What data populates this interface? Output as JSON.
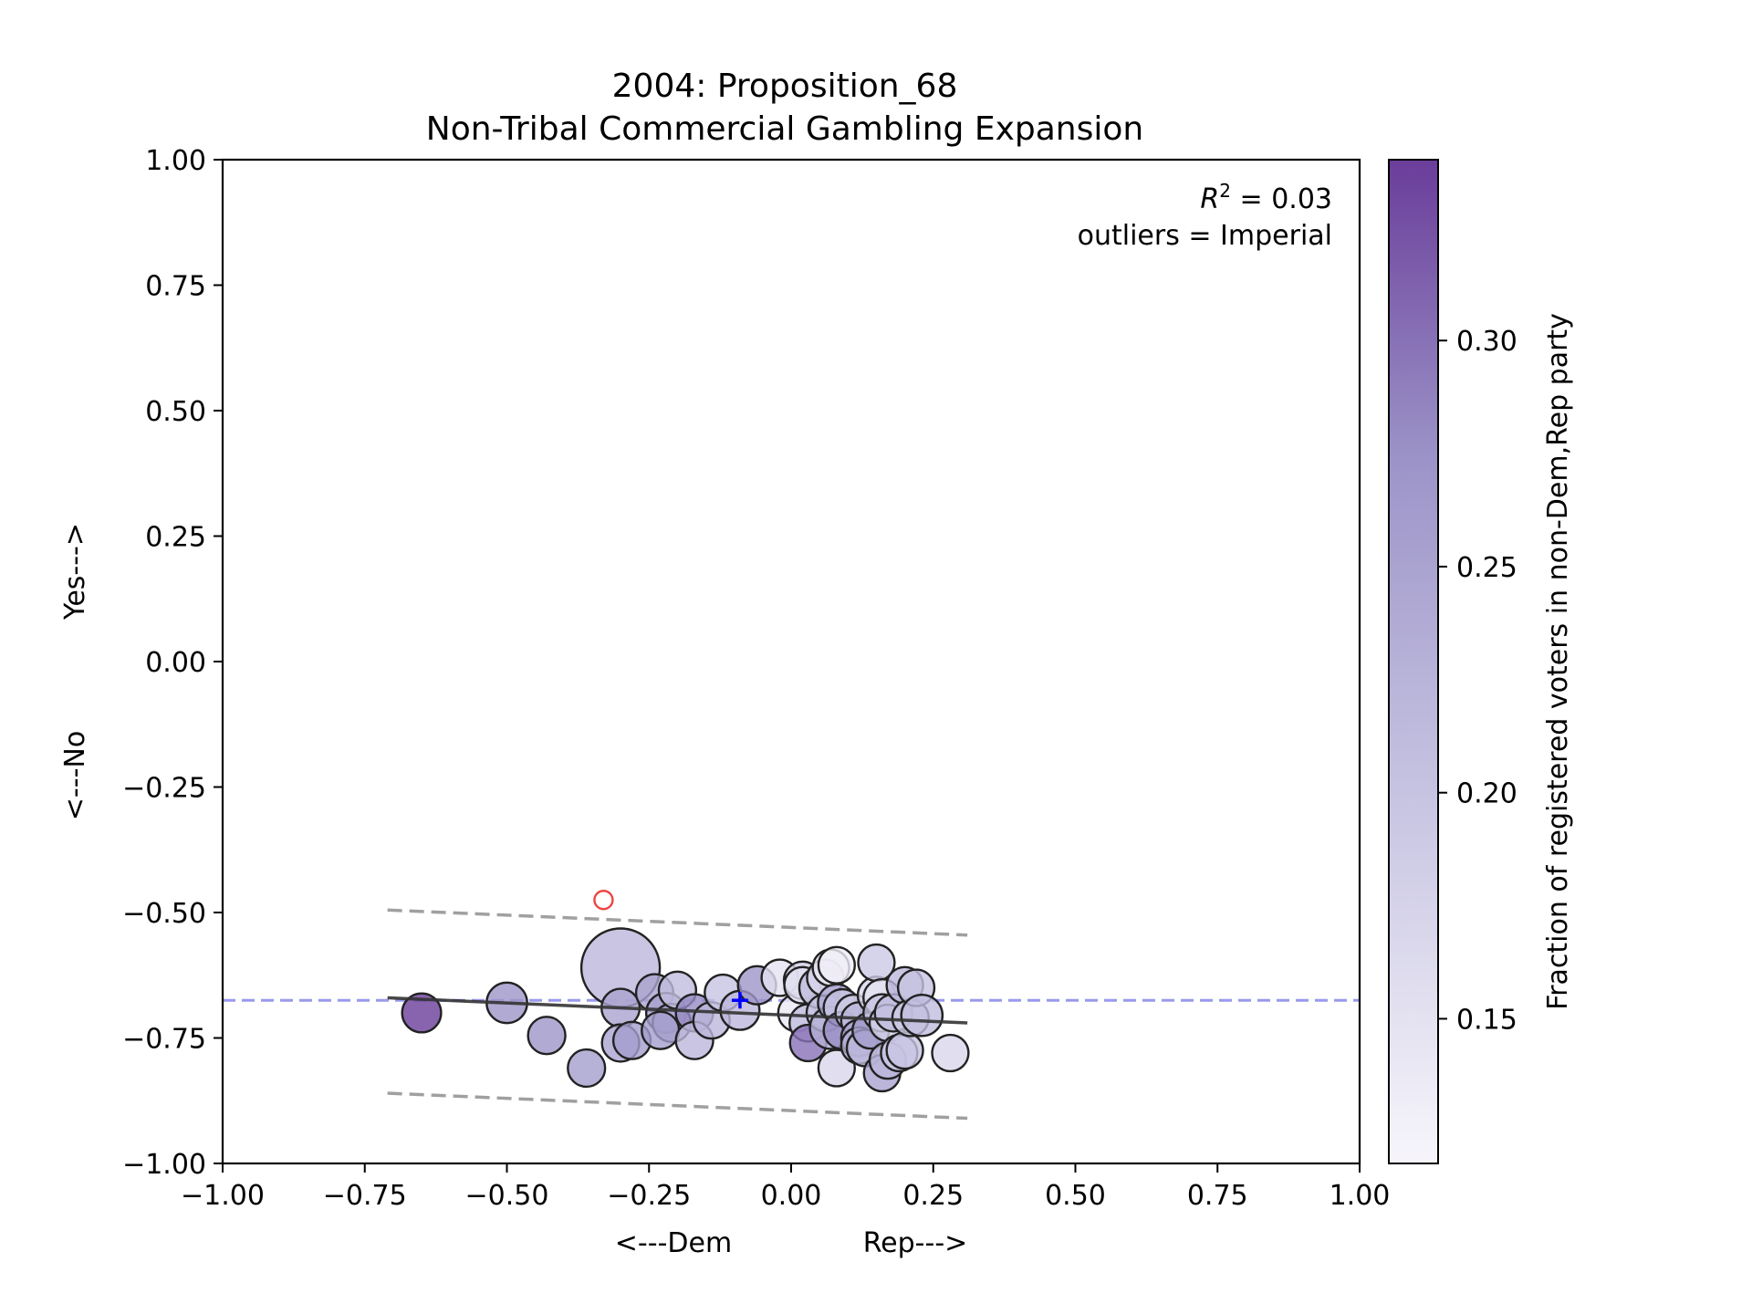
{
  "chart_data": {
    "type": "scatter",
    "title_line1": "2004: Proposition_68",
    "title_line2": "Non-Tribal Commercial Gambling Expansion",
    "xlabel_left": "<---Dem",
    "xlabel_right": "Rep--->",
    "ylabel_left": "<---No",
    "ylabel_right": "Yes--->",
    "xlim": [
      -1.0,
      1.0
    ],
    "ylim": [
      -1.0,
      1.0
    ],
    "xticks": [
      "−1.00",
      "−0.75",
      "−0.50",
      "−0.25",
      "0.00",
      "0.25",
      "0.50",
      "0.75",
      "1.00"
    ],
    "xtick_values": [
      -1.0,
      -0.75,
      -0.5,
      -0.25,
      0.0,
      0.25,
      0.5,
      0.75,
      1.0
    ],
    "yticks": [
      "1.00",
      "0.75",
      "0.50",
      "0.25",
      "0.00",
      "−0.25",
      "−0.50",
      "−0.75",
      "−1.00"
    ],
    "ytick_values": [
      1.0,
      0.75,
      0.5,
      0.25,
      0.0,
      -0.25,
      -0.5,
      -0.75,
      -1.0
    ],
    "annotation_r2": "R² = 0.03",
    "annotation_outliers": "outliers = Imperial",
    "colorbar": {
      "label": "Fraction of registered voters in non-Dem,Rep party",
      "range": [
        0.118,
        0.34
      ],
      "ticks": [
        "0.15",
        "0.20",
        "0.25",
        "0.30"
      ],
      "tick_values": [
        0.15,
        0.2,
        0.25,
        0.3
      ],
      "color_low": "#f7f5fb",
      "color_high": "#6a3d9a"
    },
    "mean_line": {
      "y": -0.675,
      "color": "#9999ee"
    },
    "regression_line": {
      "x": [
        -0.71,
        0.31
      ],
      "y": [
        -0.67,
        -0.72
      ],
      "color": "#333333"
    },
    "bounds": [
      {
        "x": [
          -0.71,
          0.31
        ],
        "y": [
          -0.495,
          -0.545
        ],
        "color": "#a0a0a0"
      },
      {
        "x": [
          -0.71,
          0.31
        ],
        "y": [
          -0.86,
          -0.91
        ],
        "color": "#a0a0a0"
      }
    ],
    "center_marker": {
      "x": -0.09,
      "y": -0.675,
      "color": "#0000ff"
    },
    "outlier": {
      "x": -0.33,
      "y": -0.475,
      "color": "#ee4444"
    },
    "points": [
      {
        "x": -0.3,
        "y": -0.61,
        "s": 1.0,
        "c": 0.22
      },
      {
        "x": -0.65,
        "y": -0.7,
        "s": 0.14,
        "c": 0.34
      },
      {
        "x": -0.5,
        "y": -0.68,
        "s": 0.16,
        "c": 0.27
      },
      {
        "x": -0.43,
        "y": -0.745,
        "s": 0.12,
        "c": 0.27
      },
      {
        "x": -0.36,
        "y": -0.81,
        "s": 0.12,
        "c": 0.26
      },
      {
        "x": -0.3,
        "y": -0.69,
        "s": 0.13,
        "c": 0.25
      },
      {
        "x": -0.3,
        "y": -0.76,
        "s": 0.12,
        "c": 0.25
      },
      {
        "x": -0.28,
        "y": -0.755,
        "s": 0.12,
        "c": 0.26
      },
      {
        "x": -0.24,
        "y": -0.66,
        "s": 0.12,
        "c": 0.25
      },
      {
        "x": -0.22,
        "y": -0.7,
        "s": 0.15,
        "c": 0.25
      },
      {
        "x": -0.21,
        "y": -0.72,
        "s": 0.13,
        "c": 0.24
      },
      {
        "x": -0.23,
        "y": -0.735,
        "s": 0.12,
        "c": 0.26
      },
      {
        "x": -0.2,
        "y": -0.655,
        "s": 0.12,
        "c": 0.21
      },
      {
        "x": -0.17,
        "y": -0.7,
        "s": 0.12,
        "c": 0.28
      },
      {
        "x": -0.17,
        "y": -0.755,
        "s": 0.12,
        "c": 0.22
      },
      {
        "x": -0.14,
        "y": -0.715,
        "s": 0.11,
        "c": 0.22
      },
      {
        "x": -0.12,
        "y": -0.66,
        "s": 0.11,
        "c": 0.2
      },
      {
        "x": -0.09,
        "y": -0.695,
        "s": 0.14,
        "c": 0.22
      },
      {
        "x": -0.06,
        "y": -0.645,
        "s": 0.13,
        "c": 0.27
      },
      {
        "x": -0.02,
        "y": -0.63,
        "s": 0.11,
        "c": 0.15
      },
      {
        "x": 0.01,
        "y": -0.7,
        "s": 0.12,
        "c": 0.14
      },
      {
        "x": 0.02,
        "y": -0.635,
        "s": 0.12,
        "c": 0.18
      },
      {
        "x": 0.02,
        "y": -0.645,
        "s": 0.11,
        "c": 0.15
      },
      {
        "x": 0.03,
        "y": -0.72,
        "s": 0.12,
        "c": 0.21
      },
      {
        "x": 0.03,
        "y": -0.76,
        "s": 0.11,
        "c": 0.3
      },
      {
        "x": 0.05,
        "y": -0.65,
        "s": 0.16,
        "c": 0.21
      },
      {
        "x": 0.06,
        "y": -0.7,
        "s": 0.12,
        "c": 0.2
      },
      {
        "x": 0.07,
        "y": -0.73,
        "s": 0.18,
        "c": 0.23
      },
      {
        "x": 0.06,
        "y": -0.63,
        "s": 0.11,
        "c": 0.17
      },
      {
        "x": 0.07,
        "y": -0.61,
        "s": 0.11,
        "c": 0.14
      },
      {
        "x": 0.08,
        "y": -0.605,
        "s": 0.11,
        "c": 0.13
      },
      {
        "x": 0.08,
        "y": -0.68,
        "s": 0.12,
        "c": 0.24
      },
      {
        "x": 0.09,
        "y": -0.69,
        "s": 0.12,
        "c": 0.2
      },
      {
        "x": 0.09,
        "y": -0.735,
        "s": 0.12,
        "c": 0.28
      },
      {
        "x": 0.08,
        "y": -0.81,
        "s": 0.11,
        "c": 0.17
      },
      {
        "x": 0.11,
        "y": -0.7,
        "s": 0.11,
        "c": 0.19
      },
      {
        "x": 0.12,
        "y": -0.715,
        "s": 0.11,
        "c": 0.22
      },
      {
        "x": 0.12,
        "y": -0.75,
        "s": 0.11,
        "c": 0.25
      },
      {
        "x": 0.12,
        "y": -0.765,
        "s": 0.11,
        "c": 0.23
      },
      {
        "x": 0.13,
        "y": -0.77,
        "s": 0.11,
        "c": 0.22
      },
      {
        "x": 0.14,
        "y": -0.735,
        "s": 0.11,
        "c": 0.26
      },
      {
        "x": 0.15,
        "y": -0.665,
        "s": 0.12,
        "c": 0.17
      },
      {
        "x": 0.15,
        "y": -0.6,
        "s": 0.11,
        "c": 0.19
      },
      {
        "x": 0.16,
        "y": -0.67,
        "s": 0.12,
        "c": 0.15
      },
      {
        "x": 0.16,
        "y": -0.7,
        "s": 0.12,
        "c": 0.2
      },
      {
        "x": 0.16,
        "y": -0.82,
        "s": 0.11,
        "c": 0.25
      },
      {
        "x": 0.17,
        "y": -0.72,
        "s": 0.11,
        "c": 0.18
      },
      {
        "x": 0.17,
        "y": -0.795,
        "s": 0.11,
        "c": 0.22
      },
      {
        "x": 0.18,
        "y": -0.7,
        "s": 0.12,
        "c": 0.21
      },
      {
        "x": 0.19,
        "y": -0.78,
        "s": 0.11,
        "c": 0.19
      },
      {
        "x": 0.2,
        "y": -0.645,
        "s": 0.11,
        "c": 0.22
      },
      {
        "x": 0.2,
        "y": -0.775,
        "s": 0.11,
        "c": 0.2
      },
      {
        "x": 0.21,
        "y": -0.71,
        "s": 0.11,
        "c": 0.19
      },
      {
        "x": 0.22,
        "y": -0.65,
        "s": 0.11,
        "c": 0.2
      },
      {
        "x": 0.23,
        "y": -0.705,
        "s": 0.17,
        "c": 0.21
      },
      {
        "x": 0.28,
        "y": -0.78,
        "s": 0.11,
        "c": 0.17
      }
    ]
  }
}
